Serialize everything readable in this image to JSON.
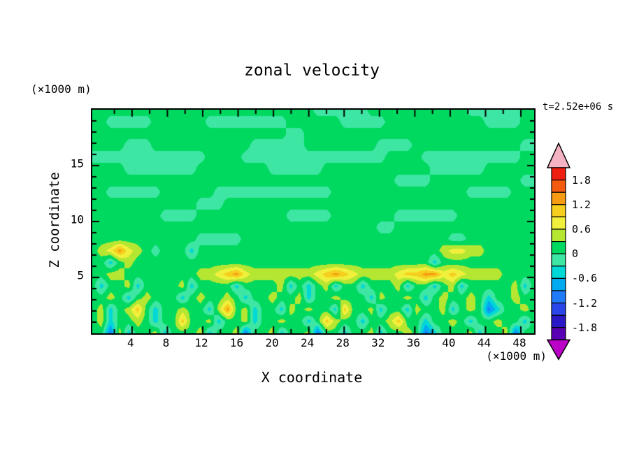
{
  "labels": {
    "title": "zonal velocity",
    "ylabel": "Z coordinate",
    "xlabel": "X coordinate",
    "y_unit": "(×1000 m)",
    "x_unit": "(×1000 m)",
    "time": "t=2.52e+06 s"
  },
  "chart_data": {
    "type": "heatmap",
    "title": "zonal velocity",
    "xlabel": "X coordinate (×1000 m)",
    "ylabel": "Z coordinate (×1000 m)",
    "annotation": "t=2.52e+06 s",
    "x_range": [
      -0.5,
      49.5
    ],
    "z_range": [
      0,
      20
    ],
    "x_major_ticks": [
      4,
      8,
      12,
      16,
      20,
      24,
      28,
      32,
      36,
      40,
      44,
      48
    ],
    "x_minor_ticks": [
      2,
      6,
      10,
      14,
      18,
      22,
      26,
      30,
      34,
      38,
      42,
      46
    ],
    "z_major_ticks": [
      5,
      10,
      15
    ],
    "z_minor_ticks": [
      1,
      2,
      3,
      4,
      6,
      7,
      8,
      9,
      11,
      12,
      13,
      14,
      16,
      17,
      18,
      19
    ],
    "contour_interval": 0.3,
    "levels_min": -2.1,
    "levels_max": 2.1,
    "colorbar_labels": [
      "1.8",
      "1.2",
      "0.6",
      "0",
      "-0.6",
      "-1.2",
      "-1.8"
    ],
    "level_colors": [
      "#5a00b4",
      "#2a18c8",
      "#2a46ea",
      "#1f7bfa",
      "#00aaf0",
      "#00d8d8",
      "#3de6a3",
      "#00d95f",
      "#b4e632",
      "#f0f03c",
      "#f6ce1e",
      "#f79b12",
      "#f55b0e",
      "#ee1e10"
    ],
    "under_color": "#bb00c8",
    "over_color": "#f3b3c3",
    "value_encoding": "each char is hex band index 0-13; band midpoint value = 0.3*index - 1.95",
    "grid_rows_top_to_bottom": [
      "77777777777777777777777776666667777777777766666677",
      "77666667777776666666667777776666677777777777666677",
      "77777777777777777777776677777777777777777777777777",
      "77776667777777777766666677777777666677777777777766",
      "66666666666667777666666666666666677776666666666677",
      "77776666666677777777666666777777777777666666777777",
      "77777777777777777777777777777777776666777777777766",
      "77666666777777666666666666677777777777777766666777",
      "77777777777766677777777777777777777777777777777777",
      "77777777666677777777776666677777776666666777777777",
      "77777777777777777777777777777777667777777777777777",
      "77777777777766666777777777777777777777776677777777",
      "789B9876777577777777777777777777777777789988777777",
      "77578777777777777777777777777777777777577777777777",
      "778877777777889AB988888889ABA988889AABB9A988887777",
      "75778577778577775777785757857757778577578577777857",
      "77875787775787787577877857787775877875787787577877",
      "78578A757787758B785775878775A77857758778578735778-",
      "7857787577A778577857787757A8775778A775778757787757",
      "77385778577785778377857783775778577873577785778377"
    ]
  }
}
